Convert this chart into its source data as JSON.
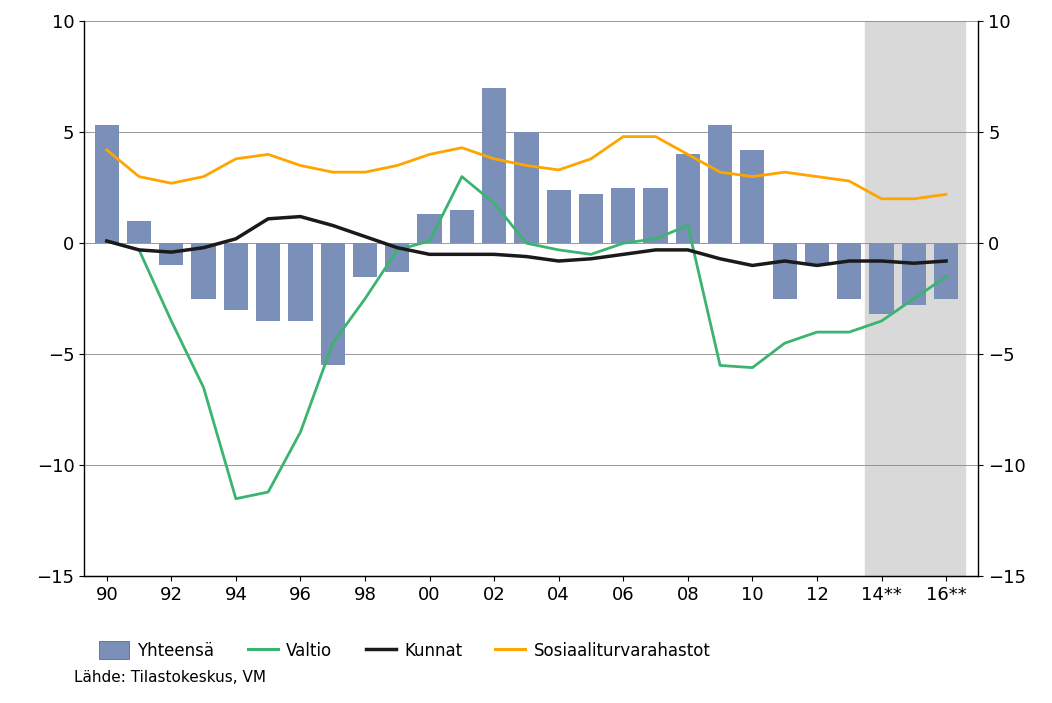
{
  "years": [
    1990,
    1991,
    1992,
    1993,
    1994,
    1995,
    1996,
    1997,
    1998,
    1999,
    2000,
    2001,
    2002,
    2003,
    2004,
    2005,
    2006,
    2007,
    2008,
    2009,
    2010,
    2011,
    2012,
    2013,
    2014,
    2015,
    2016
  ],
  "yhteensa": [
    5.3,
    1.0,
    -1.0,
    -2.5,
    -3.0,
    -3.5,
    -3.5,
    -5.5,
    -1.5,
    -1.3,
    1.3,
    1.5,
    7.0,
    5.0,
    2.4,
    2.2,
    2.5,
    2.5,
    4.0,
    5.3,
    4.2,
    -2.5,
    -1.0,
    -2.5,
    -3.2,
    -2.8,
    -2.5
  ],
  "valtio": [
    0.1,
    -0.3,
    -3.5,
    -6.5,
    -11.5,
    -11.2,
    -8.5,
    -4.5,
    -2.5,
    -0.3,
    0.1,
    3.0,
    1.8,
    0.0,
    -0.3,
    -0.5,
    0.0,
    0.2,
    0.8,
    -5.5,
    -5.6,
    -4.5,
    -4.0,
    -4.0,
    -3.5,
    -2.5,
    -1.5
  ],
  "kunnat": [
    0.1,
    -0.3,
    -0.4,
    -0.2,
    0.2,
    1.1,
    1.2,
    0.8,
    0.3,
    -0.2,
    -0.5,
    -0.5,
    -0.5,
    -0.6,
    -0.8,
    -0.7,
    -0.5,
    -0.3,
    -0.3,
    -0.7,
    -1.0,
    -0.8,
    -1.0,
    -0.8,
    -0.8,
    -0.9,
    -0.8
  ],
  "sosturva": [
    4.2,
    3.0,
    2.7,
    3.0,
    3.8,
    4.0,
    3.5,
    3.2,
    3.2,
    3.5,
    4.0,
    4.3,
    3.8,
    3.5,
    3.3,
    3.8,
    4.8,
    4.8,
    4.0,
    3.2,
    3.0,
    3.2,
    3.0,
    2.8,
    2.0,
    2.0,
    2.2
  ],
  "bar_color": "#7B90B8",
  "valtio_color": "#3CB371",
  "kunnat_color": "#1A1A1A",
  "sosturva_color": "#FFA500",
  "shaded_color": "#D9D9D9",
  "ylim": [
    -15,
    10
  ],
  "yticks": [
    -15,
    -10,
    -5,
    0,
    5,
    10
  ],
  "source": "Lähde: Tilastokeskus, VM",
  "legend_labels": [
    "Yhteensä",
    "Valtio",
    "Kunnat",
    "Sosiaaliturvarahastot"
  ]
}
